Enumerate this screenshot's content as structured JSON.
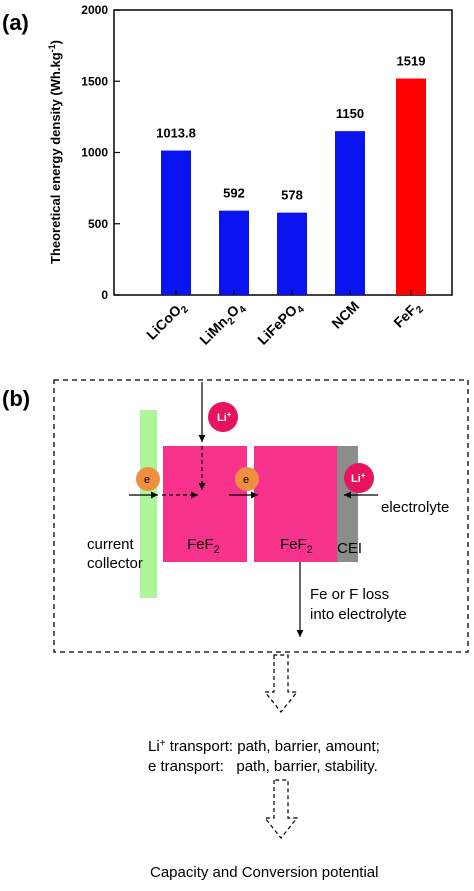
{
  "chart_data": {
    "type": "bar",
    "panel_label": "(a)",
    "ylabel": "Theoretical energy density (Wh.kg",
    "ylabel_sup": "-1",
    "ylabel_close": ")",
    "ylim": [
      0,
      2000
    ],
    "yticks": [
      0,
      500,
      1000,
      1500,
      2000
    ],
    "categories": [
      {
        "base": "LiCoO",
        "sub": "2",
        "rest": "",
        "rest_sub": ""
      },
      {
        "base": "LiMn",
        "sub": "2",
        "rest": "O",
        "rest_sub": "4"
      },
      {
        "base": "LiFePO",
        "sub": "4",
        "rest": "",
        "rest_sub": ""
      },
      {
        "base": "NCM",
        "sub": "",
        "rest": "",
        "rest_sub": ""
      },
      {
        "base": "FeF",
        "sub": "2",
        "rest": "",
        "rest_sub": ""
      }
    ],
    "values": [
      1013.8,
      592,
      578,
      1150,
      1519
    ],
    "value_labels": [
      "1013.8",
      "592",
      "578",
      "1150",
      "1519"
    ],
    "colors": [
      "#0a14f0",
      "#0a14f0",
      "#0a14f0",
      "#0a14f0",
      "#ff0000"
    ]
  },
  "diagram": {
    "panel_label": "(b)",
    "li_plus_base": "Li",
    "li_plus_sup": "+",
    "electron": "e",
    "fef_base": "FeF",
    "fef_sub": "2",
    "cei": "CEI",
    "electrolyte": "electrolyte",
    "current_collector_line1": "current",
    "current_collector_line2": "collector",
    "loss_line1": "Fe or F loss",
    "loss_line2": "into electrolyte",
    "transport_li_base": "Li",
    "transport_li_sup": "+",
    "transport_li_rest": " transport: path, barrier, amount;",
    "transport_e": "e transport:   path, barrier, stability.",
    "outcome": "Capacity and Conversion potential"
  },
  "colors": {
    "current_collector": "#aef59a",
    "fef2": "#f7328c",
    "cei": "#8c8c8c",
    "li_ion": "#e8135e",
    "electron": "#ef9040"
  }
}
